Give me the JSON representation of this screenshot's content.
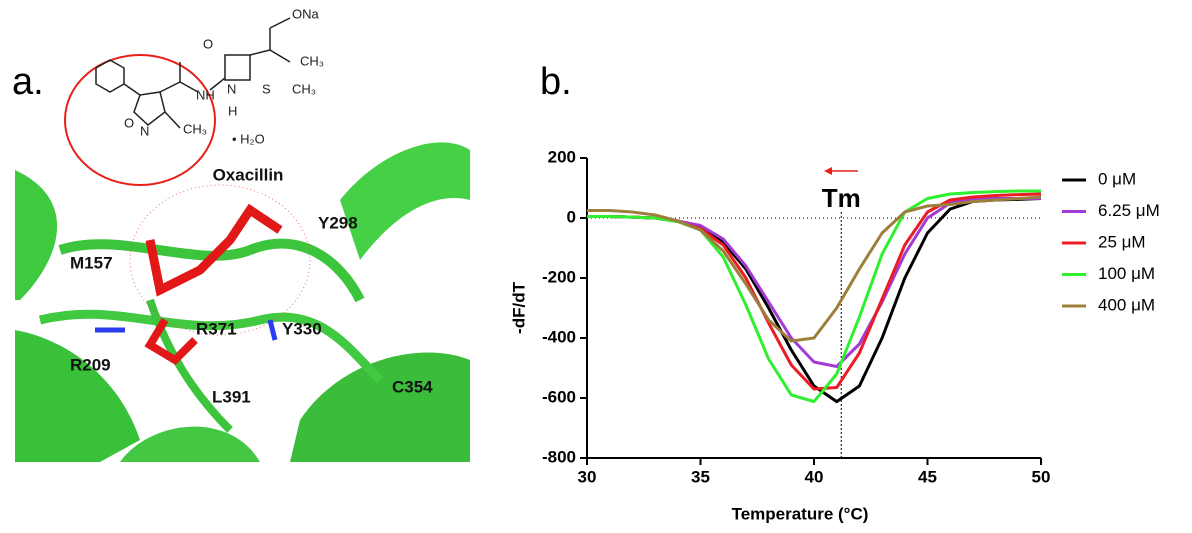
{
  "panel_a": {
    "label": "a.",
    "ligand_name": "Oxacillin",
    "residues": [
      "Y298",
      "M157",
      "R371",
      "Y330",
      "R209",
      "L391",
      "C354"
    ],
    "structure_labels": [
      "O",
      "ONa",
      "CH₃",
      "CH₃",
      "N",
      "H",
      "NH",
      "S",
      "N",
      "O",
      "CH₃",
      "• H₂O"
    ]
  },
  "chart_data": {
    "type": "line",
    "panel_label": "b.",
    "x_label": "Temperature (°C)",
    "y_label": "-dF/dT",
    "annotation": "Tm",
    "tm_x": 41.2,
    "x": [
      30,
      31,
      32,
      33,
      34,
      35,
      36,
      37,
      38,
      39,
      40,
      41,
      42,
      43,
      44,
      45,
      46,
      47,
      48,
      49,
      50
    ],
    "series": [
      {
        "name": "0 μM",
        "color": "#000000",
        "values": [
          5,
          5,
          3,
          0,
          -10,
          -30,
          -80,
          -170,
          -300,
          -440,
          -560,
          -612,
          -560,
          -400,
          -200,
          -50,
          30,
          55,
          60,
          62,
          65
        ]
      },
      {
        "name": "6.25 μM",
        "color": "#a23ad6",
        "values": [
          5,
          5,
          3,
          0,
          -10,
          -25,
          -70,
          -160,
          -280,
          -400,
          -480,
          -495,
          -420,
          -280,
          -120,
          0,
          50,
          65,
          65,
          65,
          65
        ]
      },
      {
        "name": "25 μM",
        "color": "#ec1c24",
        "values": [
          5,
          5,
          3,
          0,
          -12,
          -35,
          -90,
          -200,
          -350,
          -490,
          -570,
          -565,
          -450,
          -270,
          -90,
          20,
          60,
          70,
          75,
          78,
          80
        ]
      },
      {
        "name": "100 μM",
        "color": "#2ff02f",
        "values": [
          5,
          5,
          3,
          0,
          -12,
          -40,
          -130,
          -290,
          -470,
          -590,
          -612,
          -520,
          -330,
          -120,
          20,
          65,
          80,
          85,
          88,
          90,
          90
        ]
      },
      {
        "name": "400 μM",
        "color": "#9c7f3c",
        "values": [
          25,
          25,
          20,
          10,
          -10,
          -40,
          -110,
          -220,
          -340,
          -410,
          -400,
          -300,
          -170,
          -50,
          20,
          40,
          45,
          55,
          60,
          65,
          70
        ]
      }
    ],
    "xlim": [
      30,
      50
    ],
    "xticks": [
      30,
      35,
      40,
      45,
      50
    ],
    "ylim": [
      -800,
      200
    ],
    "yticks": [
      -800,
      -600,
      -400,
      -200,
      0,
      200
    ]
  }
}
